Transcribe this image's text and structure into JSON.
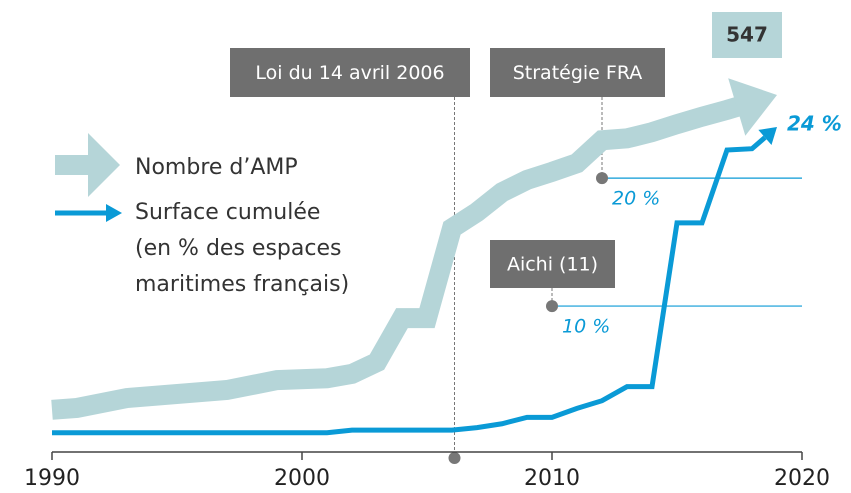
{
  "chart_data": {
    "type": "line",
    "x": [
      1990,
      1991,
      1993,
      1997,
      1999,
      2001,
      2002,
      2003,
      2004,
      2005,
      2006,
      2007,
      2008,
      2009,
      2010,
      2011,
      2012,
      2013,
      2014,
      2015,
      2016,
      2017,
      2018,
      2019
    ],
    "series": [
      {
        "name": "Nombre d’AMP",
        "color": "#b5d5d8",
        "axis": "y2",
        "values": [
          39,
          42,
          58,
          71,
          87,
          90,
          97,
          116,
          187,
          187,
          332,
          358,
          390,
          410,
          423,
          437,
          474,
          477,
          487,
          500,
          512,
          523,
          535,
          547
        ]
      },
      {
        "name": "Surface cumulée",
        "color": "#0a9ad6",
        "values": [
          0.1,
          0.1,
          0.1,
          0.1,
          0.1,
          0.1,
          0.3,
          0.3,
          0.3,
          0.3,
          0.3,
          0.5,
          0.8,
          1.3,
          1.3,
          2,
          2.6,
          3.7,
          3.7,
          16.5,
          16.5,
          22.2,
          22.3,
          24
        ],
        "value_labels": [
          null,
          null,
          null,
          null,
          null,
          null,
          null,
          null,
          null,
          null,
          null,
          null,
          null,
          null,
          null,
          null,
          null,
          null,
          null,
          null,
          null,
          null,
          null,
          "24 %"
        ]
      }
    ],
    "legend_note": [
      "(en % des espaces",
      "maritimes français)"
    ],
    "xlim": [
      1990,
      2020
    ],
    "xticks": [
      1990,
      2000,
      2010,
      2020
    ],
    "ylim": [
      0,
      26.5
    ],
    "y2lim": [
      0,
      547
    ],
    "annotations": [
      {
        "text": "Loi du 14 avril 2006",
        "x": 2006.1
      },
      {
        "text": "Stratégie FRA",
        "x": 2012,
        "y": 20,
        "label": "20 %"
      },
      {
        "text": "Aichi (11)",
        "x": 2010,
        "y": 10,
        "label": "10 %"
      }
    ]
  }
}
